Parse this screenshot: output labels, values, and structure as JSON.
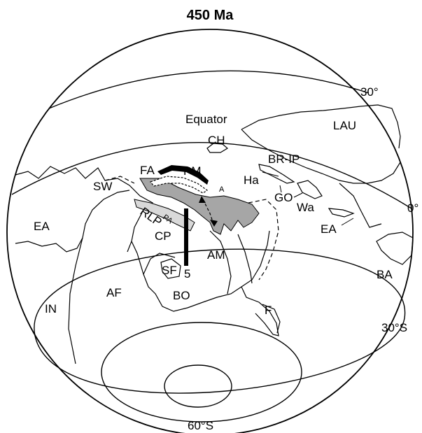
{
  "title": "450 Ma",
  "latitude_labels": {
    "lat_30n": "30°",
    "equator_deg": "0°",
    "lat_30s": "30°S",
    "lat_60s": "60°S"
  },
  "equator_label": "Equator",
  "regions": {
    "ch": "CH",
    "lau": "LAU",
    "fa": "FA",
    "pm": "PM",
    "ha": "Ha",
    "br_ip": "BR-IP",
    "sw": "SW",
    "a": "A",
    "go": "GO",
    "wa": "Wa",
    "ea_west": "EA",
    "pa": "PA",
    "rlp": "RLP",
    "ea_east": "EA",
    "cp": "CP",
    "am": "AM",
    "ba": "BA",
    "sf": "SF",
    "five": "5",
    "af": "AF",
    "bo": "BO",
    "in": "IN",
    "f": "F"
  },
  "colors": {
    "orogen_fill": "#a6a6a6",
    "light_fill": "#d9d9d9",
    "ink": "#000000"
  }
}
